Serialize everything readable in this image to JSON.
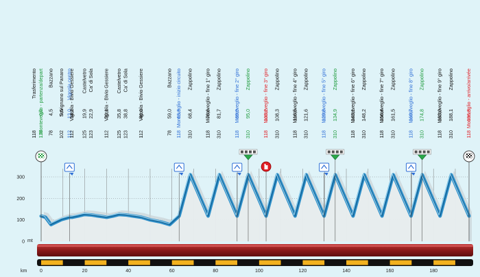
{
  "colors": {
    "background": "#dff3f8",
    "default_text": "#111111",
    "start_finish": "#1c9a3a",
    "sprint": "#2f6fd6",
    "feed": "#e01f26",
    "profile_fill": "#2f8fc8",
    "profile_stroke": "#0f5f93",
    "ribbon": "#8b1a1a",
    "km_stripe_a": "#f2b21f",
    "km_stripe_b": "#111111",
    "shadow": "#c9d2d6"
  },
  "labels": [
    {
      "km": 0,
      "name": "Trasferimento",
      "km_text": "",
      "alt": "118",
      "kind": "default"
    },
    {
      "km": 0,
      "name": "Monteveglio - partenza/depart",
      "km_text": "0,0",
      "alt": "118",
      "kind": "start"
    },
    {
      "km": 4.5,
      "name": "Bazzano",
      "km_text": "4,5",
      "alt": "78",
      "kind": "default"
    },
    {
      "km": 9.5,
      "name": "Savignano sul Panaro",
      "km_text": "9,5",
      "alt": "102",
      "kind": "default"
    },
    {
      "km": 13.0,
      "name": "Vignola centro",
      "km_text": "13,0",
      "alt": "112",
      "kind": "sprint"
    },
    {
      "km": 14.2,
      "name": "Vignola - Bivio Gessiere",
      "km_text": "14,2",
      "alt": "112",
      "kind": "default"
    },
    {
      "km": 19.9,
      "name": "Castelvetro",
      "km_text": "19,9",
      "alt": "125",
      "kind": "default"
    },
    {
      "km": 22.9,
      "name": "Ca' di Sola",
      "km_text": "22,9",
      "alt": "123",
      "kind": "default"
    },
    {
      "km": 30.1,
      "name": "Vignola - Bivio Gessiere",
      "km_text": "30,1",
      "alt": "112",
      "kind": "default"
    },
    {
      "km": 35.8,
      "name": "Castelvetro",
      "km_text": "35,8",
      "alt": "125",
      "kind": "default"
    },
    {
      "km": 38.8,
      "name": "Ca' di Sola",
      "km_text": "38,8",
      "alt": "123",
      "kind": "default"
    },
    {
      "km": 46.0,
      "name": "Vignola - Bivio Gessiere",
      "km_text": "46,0",
      "alt": "112",
      "kind": "default"
    },
    {
      "km": 59.0,
      "name": "Bazzano",
      "km_text": "59,0",
      "alt": "78",
      "kind": "default"
    },
    {
      "km": 63.3,
      "name": "Monteveglio - inizio circuito",
      "km_text": "63,3",
      "alt": "118",
      "kind": "sprint"
    },
    {
      "km": 68.4,
      "name": "Zappolino",
      "km_text": "68,4",
      "alt": "310",
      "kind": "default"
    },
    {
      "km": 76.6,
      "name": "Monteveglio - fine 1° giro",
      "km_text": "76,6",
      "alt": "118",
      "kind": "default"
    },
    {
      "km": 81.7,
      "name": "Zappolino",
      "km_text": "81,7",
      "alt": "310",
      "kind": "default"
    },
    {
      "km": 89.9,
      "name": "Monteveglio - fine 2° giro",
      "km_text": "89,9",
      "alt": "118",
      "kind": "sprint"
    },
    {
      "km": 95.0,
      "name": "Zappolino",
      "km_text": "95,0",
      "alt": "310",
      "kind": "start"
    },
    {
      "km": 103.2,
      "name": "Monteveglio - fine 3° giro",
      "km_text": "103,2",
      "alt": "118",
      "kind": "feed"
    },
    {
      "km": 108.3,
      "name": "Zappolino",
      "km_text": "108,3",
      "alt": "310",
      "kind": "default"
    },
    {
      "km": 116.5,
      "name": "Monteveglio - fine 4° giro",
      "km_text": "116,5",
      "alt": "118",
      "kind": "default"
    },
    {
      "km": 121.6,
      "name": "Zappolino",
      "km_text": "121,6",
      "alt": "310",
      "kind": "default"
    },
    {
      "km": 129.8,
      "name": "Monteveglio - fine 5° giro",
      "km_text": "129,8",
      "alt": "118",
      "kind": "sprint"
    },
    {
      "km": 134.9,
      "name": "Zappolino",
      "km_text": "134,9",
      "alt": "310",
      "kind": "start"
    },
    {
      "km": 143.1,
      "name": "Monteveglio - fine 6° giro",
      "km_text": "143,1",
      "alt": "118",
      "kind": "default"
    },
    {
      "km": 148.2,
      "name": "Zappolino",
      "km_text": "148,2",
      "alt": "310",
      "kind": "default"
    },
    {
      "km": 156.4,
      "name": "Monteveglio - fine 7° giro",
      "km_text": "156,4",
      "alt": "118",
      "kind": "default"
    },
    {
      "km": 161.5,
      "name": "Zappolino",
      "km_text": "161,5",
      "alt": "310",
      "kind": "default"
    },
    {
      "km": 169.7,
      "name": "Monteveglio - fine 8° giro",
      "km_text": "169,7",
      "alt": "118",
      "kind": "sprint"
    },
    {
      "km": 174.8,
      "name": "Zappolino",
      "km_text": "174,8",
      "alt": "310",
      "kind": "start"
    },
    {
      "km": 183.0,
      "name": "Monteveglio - fine 9° giro",
      "km_text": "183,0",
      "alt": "118",
      "kind": "default"
    },
    {
      "km": 188.1,
      "name": "Zappolino",
      "km_text": "188,1",
      "alt": "310",
      "kind": "default"
    },
    {
      "km": 196.3,
      "name": "Monteveglio - arrivo/arrivée",
      "km_text": "196,3",
      "alt": "118",
      "kind": "feed"
    }
  ],
  "chart_data": {
    "type": "area",
    "title": "",
    "xlabel": "km",
    "ylabel": "mt",
    "x_ticks": [
      0,
      20,
      40,
      60,
      80,
      100,
      120,
      140,
      160,
      180
    ],
    "y_ticks": [
      0,
      100,
      200,
      300
    ],
    "xlim": [
      0,
      196.3
    ],
    "ylim": [
      0,
      300
    ],
    "grid": true,
    "series": [
      {
        "x": [
          0,
          2,
          4.5,
          7,
          9.5,
          13.0,
          14.2,
          17,
          19.9,
          22.9,
          26,
          30.1,
          33,
          35.8,
          38.8,
          42,
          46.0,
          50,
          55,
          59.0,
          63.3,
          68.4,
          76.6,
          81.7,
          89.9,
          95.0,
          103.2,
          108.3,
          116.5,
          121.6,
          129.8,
          134.9,
          143.1,
          148.2,
          156.4,
          161.5,
          169.7,
          174.8,
          183.0,
          188.1,
          196.3
        ],
        "y": [
          118,
          112,
          78,
          90,
          102,
          112,
          112,
          118,
          125,
          123,
          118,
          112,
          118,
          125,
          123,
          118,
          112,
          100,
          90,
          78,
          118,
          310,
          118,
          310,
          118,
          310,
          118,
          310,
          118,
          310,
          118,
          310,
          118,
          310,
          118,
          310,
          118,
          310,
          118,
          310,
          118
        ]
      }
    ],
    "markers": [
      {
        "km": 0,
        "type": "start-flag"
      },
      {
        "km": 196.3,
        "type": "finish-flag"
      },
      {
        "km": 13.0,
        "type": "sprint"
      },
      {
        "km": 63.3,
        "type": "sprint"
      },
      {
        "km": 89.9,
        "type": "sprint"
      },
      {
        "km": 129.8,
        "type": "sprint"
      },
      {
        "km": 169.7,
        "type": "sprint"
      },
      {
        "km": 95.0,
        "type": "gpm"
      },
      {
        "km": 134.9,
        "type": "gpm"
      },
      {
        "km": 174.8,
        "type": "gpm"
      },
      {
        "km": 103.2,
        "type": "feed"
      }
    ]
  }
}
